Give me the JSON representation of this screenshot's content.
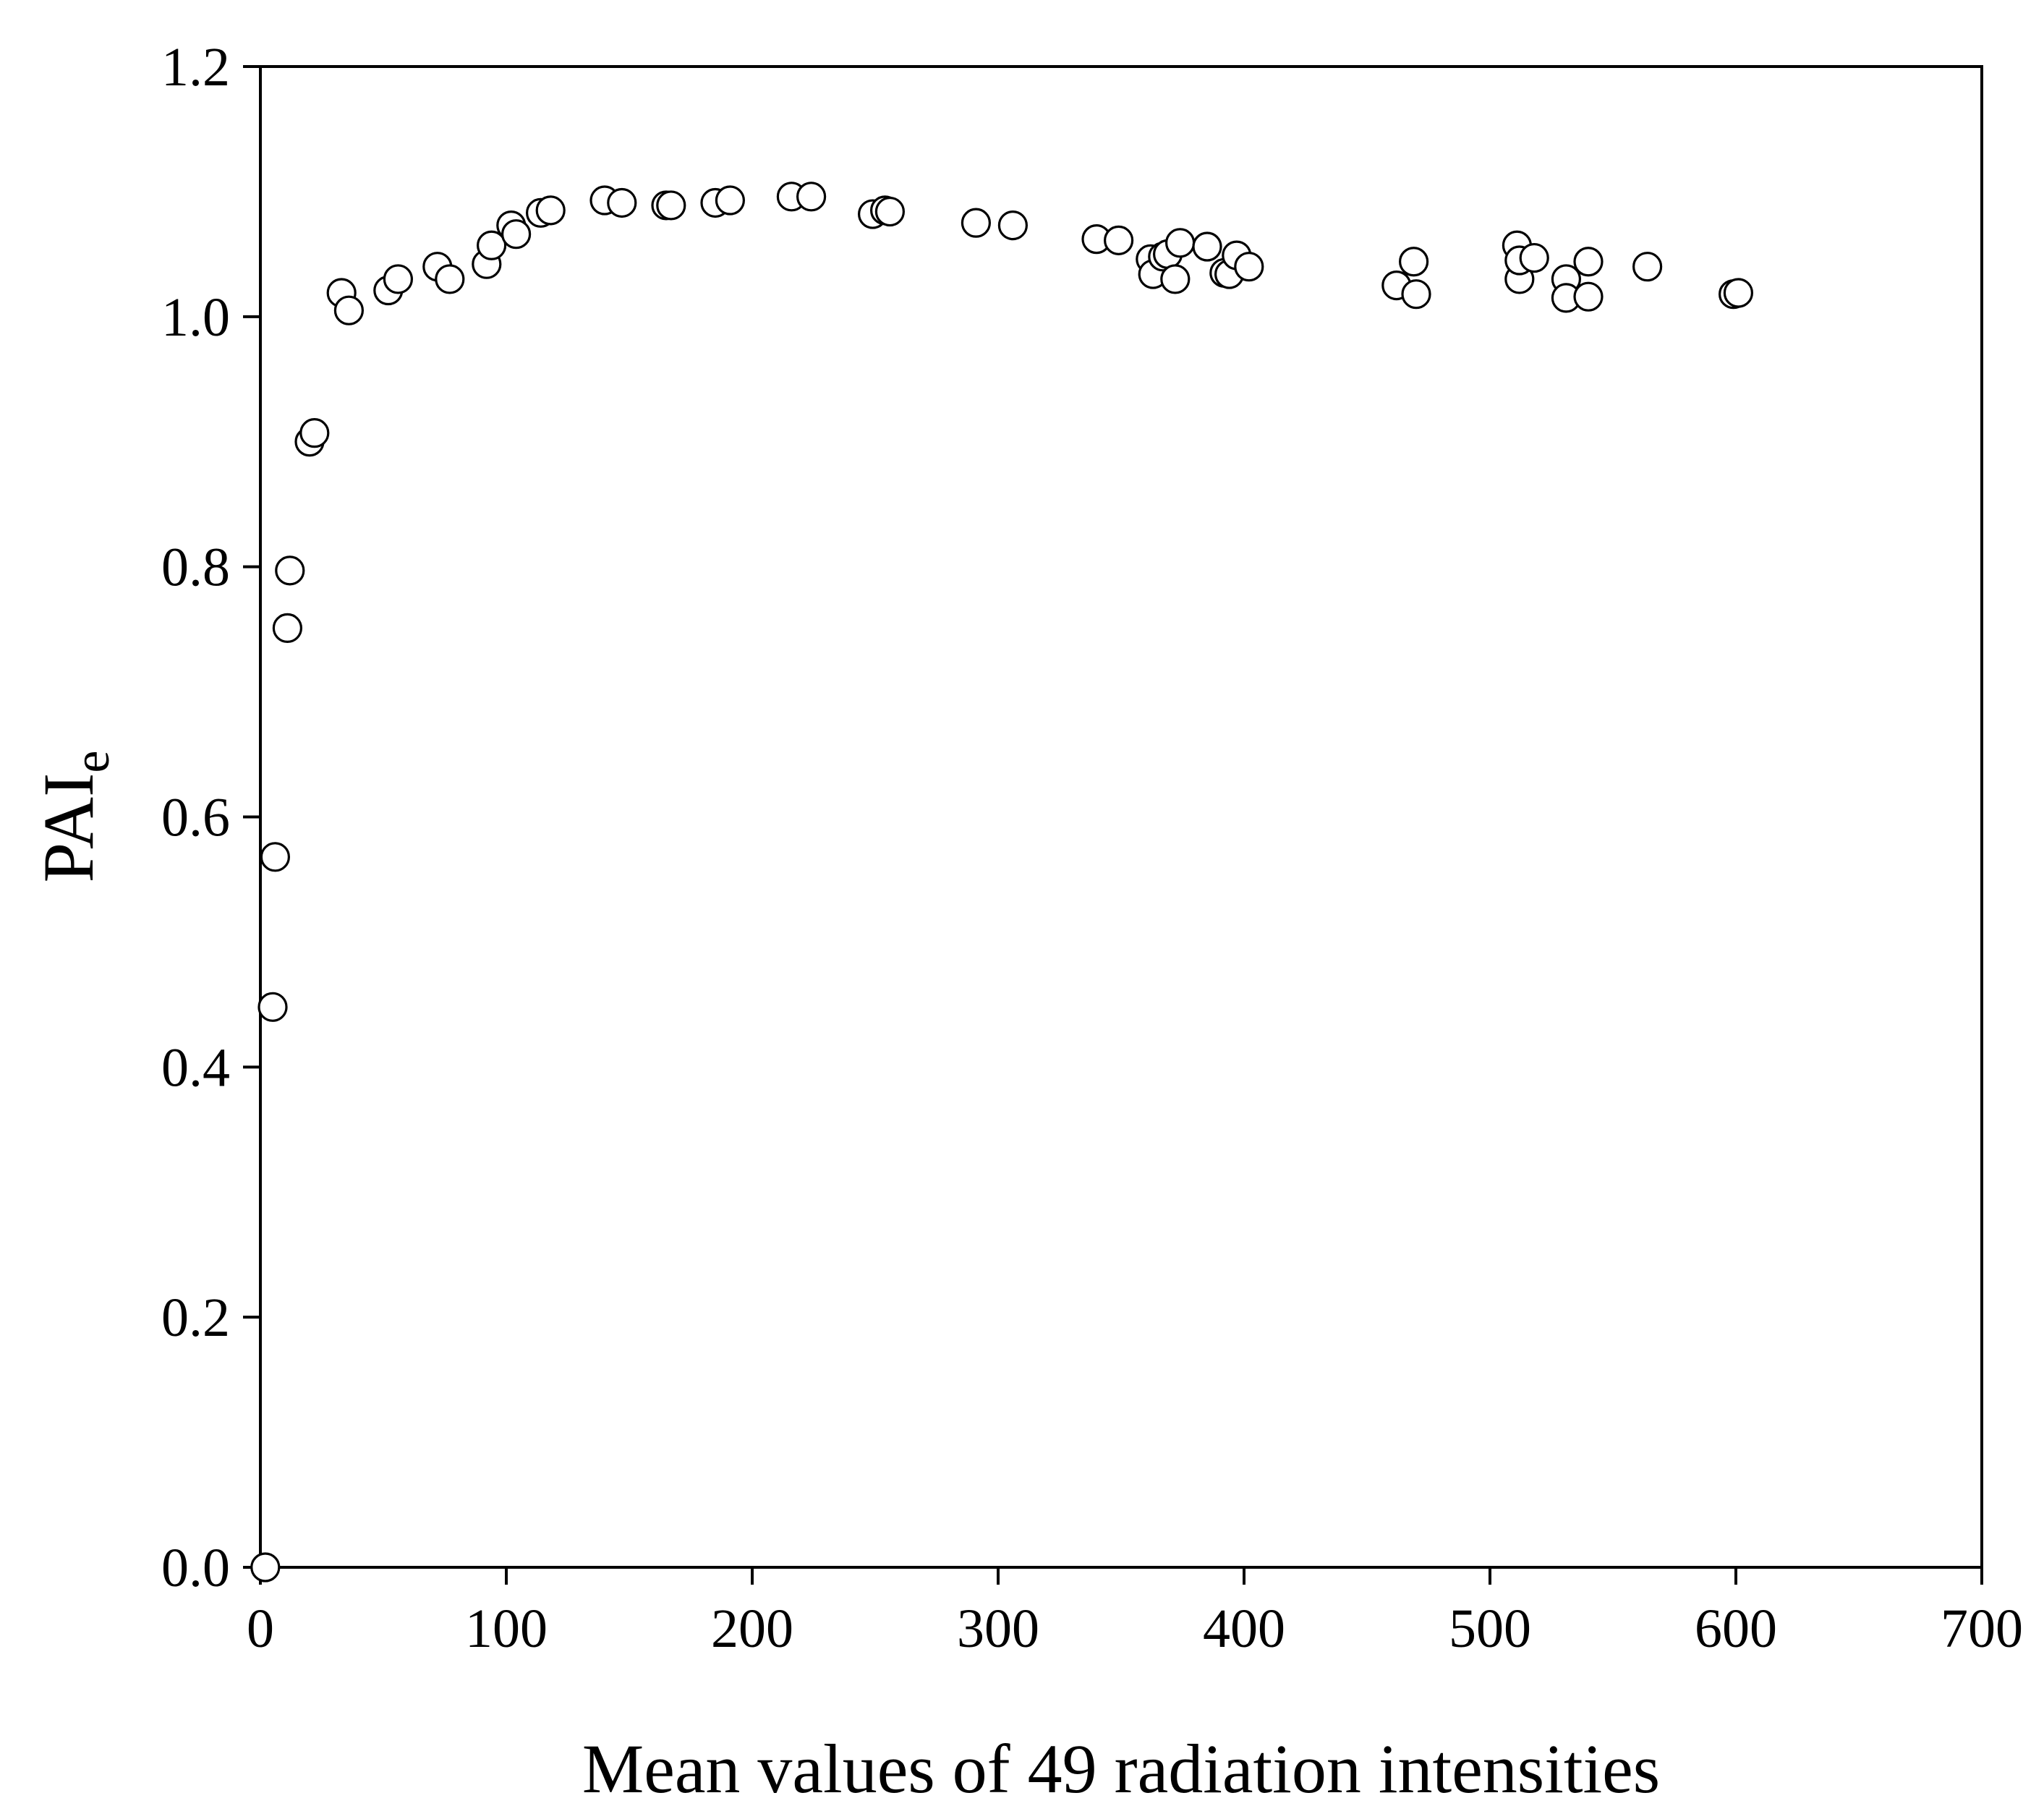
{
  "chart_data": {
    "type": "scatter",
    "title": "",
    "xlabel": "Mean values of 49 radiation intensities",
    "ylabel": {
      "main": "PAI",
      "subscript": "e"
    },
    "xlim": [
      0,
      700
    ],
    "ylim": [
      0,
      1.2
    ],
    "xticks": [
      "0",
      "100",
      "200",
      "300",
      "400",
      "500",
      "600",
      "700"
    ],
    "yticks": [
      "0.0",
      "0.2",
      "0.4",
      "0.6",
      "0.8",
      "1.0",
      "1.2"
    ],
    "grid": false,
    "legend": "none",
    "marker": "open-circle",
    "series": [
      {
        "name": "PAIe",
        "points": [
          [
            2,
            0.0
          ],
          [
            5,
            0.448
          ],
          [
            6,
            0.568
          ],
          [
            11,
            0.751
          ],
          [
            12,
            0.797
          ],
          [
            20,
            0.9
          ],
          [
            22,
            0.907
          ],
          [
            33,
            1.019
          ],
          [
            36,
            1.005
          ],
          [
            52,
            1.021
          ],
          [
            56,
            1.03
          ],
          [
            72,
            1.04
          ],
          [
            77,
            1.03
          ],
          [
            92,
            1.042
          ],
          [
            94,
            1.057
          ],
          [
            102,
            1.073
          ],
          [
            104,
            1.066
          ],
          [
            114,
            1.083
          ],
          [
            118,
            1.085
          ],
          [
            140,
            1.093
          ],
          [
            147,
            1.091
          ],
          [
            165,
            1.089
          ],
          [
            167,
            1.089
          ],
          [
            185,
            1.091
          ],
          [
            191,
            1.093
          ],
          [
            216,
            1.096
          ],
          [
            224,
            1.096
          ],
          [
            249,
            1.082
          ],
          [
            254,
            1.085
          ],
          [
            256,
            1.084
          ],
          [
            291,
            1.075
          ],
          [
            306,
            1.073
          ],
          [
            340,
            1.062
          ],
          [
            349,
            1.061
          ],
          [
            362,
            1.046
          ],
          [
            363,
            1.034
          ],
          [
            367,
            1.048
          ],
          [
            369,
            1.05
          ],
          [
            372,
            1.03
          ],
          [
            374,
            1.059
          ],
          [
            385,
            1.056
          ],
          [
            392,
            1.035
          ],
          [
            394,
            1.034
          ],
          [
            397,
            1.049
          ],
          [
            402,
            1.04
          ],
          [
            462,
            1.025
          ],
          [
            469,
            1.044
          ],
          [
            470,
            1.018
          ],
          [
            511,
            1.057
          ],
          [
            512,
            1.03
          ],
          [
            512,
            1.045
          ],
          [
            518,
            1.047
          ],
          [
            531,
            1.03
          ],
          [
            531,
            1.015
          ],
          [
            540,
            1.016
          ],
          [
            540,
            1.044
          ],
          [
            564,
            1.04
          ],
          [
            599,
            1.018
          ],
          [
            601,
            1.019
          ]
        ]
      }
    ]
  }
}
